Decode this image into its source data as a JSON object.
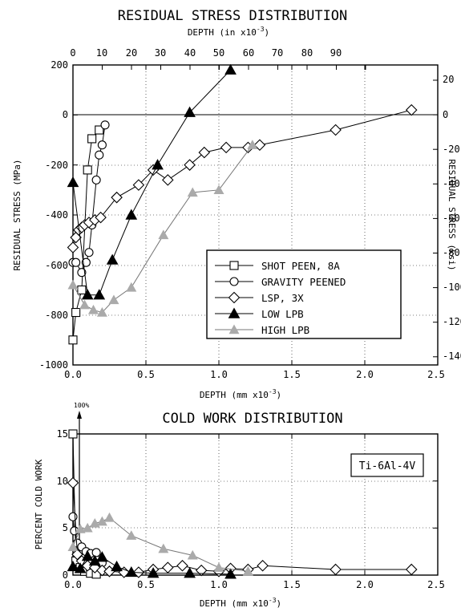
{
  "chart_data": [
    {
      "type": "line",
      "title": "RESIDUAL STRESS DISTRIBUTION",
      "xlabel": "DEPTH (mm x10",
      "xlabel_sup": "-3",
      "xlabel_end": ")",
      "x2label": "DEPTH (in x10",
      "x2label_sup": "-3",
      "x2label_end": ")",
      "ylabel": "RESIDUAL STRESS (MPa)",
      "y2label": "RESIDUAL STRESS (ksi)",
      "xlim": [
        0,
        2.5
      ],
      "ylim": [
        -1000,
        200
      ],
      "x2lim": [
        0,
        98.4
      ],
      "y2lim": [
        -145,
        29
      ],
      "xticks": [
        "0.0",
        "0.5",
        "1.0",
        "1.5",
        "2.0",
        "2.5"
      ],
      "yticks": [
        "200",
        "0",
        "-200",
        "-400",
        "-600",
        "-800",
        "-1000"
      ],
      "x2ticks": [
        "0",
        "10",
        "20",
        "30",
        "40",
        "50",
        "60",
        "70",
        "80",
        "90"
      ],
      "y2ticks": [
        "20",
        "0",
        "-20",
        "-40",
        "-60",
        "-80",
        "-100",
        "-120",
        "-140"
      ],
      "grid": true,
      "legend_position": "lower-right",
      "series": [
        {
          "name": "SHOT PEEN, 8A",
          "marker": "square",
          "color": "#000000",
          "x": [
            0.0,
            0.02,
            0.06,
            0.1,
            0.13,
            0.18
          ],
          "y": [
            -900,
            -790,
            -700,
            -220,
            -95,
            -60
          ]
        },
        {
          "name": "GRAVITY PEENED",
          "marker": "circle",
          "color": "#000000",
          "x": [
            0.0,
            0.02,
            0.06,
            0.09,
            0.11,
            0.13,
            0.16,
            0.18,
            0.2,
            0.22
          ],
          "y": [
            -590,
            -590,
            -630,
            -590,
            -550,
            -440,
            -260,
            -160,
            -120,
            -40
          ]
        },
        {
          "name": "LSP, 3X",
          "marker": "diamond",
          "color": "#000000",
          "x": [
            0.0,
            0.02,
            0.04,
            0.06,
            0.08,
            0.11,
            0.15,
            0.19,
            0.3,
            0.45,
            0.55,
            0.65,
            0.8,
            0.9,
            1.05,
            1.2,
            1.28,
            1.8,
            2.32
          ],
          "y": [
            -530,
            -490,
            -460,
            -450,
            -440,
            -430,
            -420,
            -410,
            -330,
            -280,
            -220,
            -260,
            -200,
            -150,
            -130,
            -130,
            -120,
            -60,
            20
          ]
        },
        {
          "name": "LOW LPB",
          "marker": "triangle",
          "color": "#000000",
          "x": [
            0.0,
            0.1,
            0.18,
            0.27,
            0.4,
            0.58,
            0.8,
            1.08
          ],
          "y": [
            -270,
            -720,
            -720,
            -580,
            -400,
            -200,
            10,
            180
          ]
        },
        {
          "name": "HIGH LPB",
          "marker": "triangle",
          "color": "#aaaaaa",
          "x": [
            0.0,
            0.08,
            0.14,
            0.2,
            0.28,
            0.4,
            0.62,
            0.82,
            1.0,
            1.23
          ],
          "y": [
            -680,
            -760,
            -780,
            -790,
            -740,
            -690,
            -480,
            -310,
            -300,
            -120
          ]
        }
      ]
    },
    {
      "type": "line",
      "title": "COLD WORK DISTRIBUTION",
      "xlabel": "DEPTH (mm x10",
      "xlabel_sup": "-3",
      "xlabel_end": ")",
      "ylabel": "PERCENT COLD WORK",
      "xlim": [
        0,
        2.5
      ],
      "ylim": [
        0,
        15
      ],
      "xticks": [
        "0.0",
        "0.5",
        "1.0",
        "1.5",
        "2.0",
        "2.5"
      ],
      "yticks": [
        "15",
        "10",
        "5",
        "0"
      ],
      "grid": true,
      "annotation": "100%",
      "alloy_label": "Ti-6Al-4V",
      "series": [
        {
          "name": "SHOT PEEN, 8A",
          "marker": "square",
          "color": "#000000",
          "x": [
            0.0,
            0.02,
            0.05,
            0.08,
            0.12,
            0.16
          ],
          "y": [
            15.5,
            1.5,
            0.8,
            0.4,
            0.2,
            0.1
          ]
        },
        {
          "name": "GRAVITY PEENED",
          "marker": "circle",
          "color": "#000000",
          "x": [
            0.0,
            0.01,
            0.03,
            0.06,
            0.09,
            0.12,
            0.16,
            0.2
          ],
          "y": [
            6.2,
            4.7,
            3.4,
            3.0,
            2.5,
            2.3,
            2.4,
            1.3
          ]
        },
        {
          "name": "LSP, 3X",
          "marker": "diamond",
          "color": "#000000",
          "x": [
            0.0,
            0.03,
            0.06,
            0.1,
            0.15,
            0.2,
            0.25,
            0.35,
            0.45,
            0.55,
            0.65,
            0.75,
            0.88,
            1.0,
            1.08,
            1.2,
            1.3,
            1.8,
            2.32
          ],
          "y": [
            9.8,
            2.2,
            1.5,
            1.0,
            0.8,
            0.5,
            0.4,
            0.3,
            0.3,
            0.6,
            0.8,
            1.0,
            0.5,
            0.4,
            0.7,
            0.6,
            1.0,
            0.6,
            0.6
          ]
        },
        {
          "name": "LOW LPB",
          "marker": "triangle",
          "color": "#000000",
          "x": [
            0.0,
            0.05,
            0.1,
            0.15,
            0.2,
            0.3,
            0.4,
            0.55,
            0.8,
            1.08
          ],
          "y": [
            0.9,
            0.7,
            2.0,
            1.5,
            1.9,
            0.9,
            0.3,
            0.2,
            0.2,
            0.1
          ]
        },
        {
          "name": "HIGH LPB",
          "marker": "triangle",
          "color": "#aaaaaa",
          "x": [
            0.0,
            0.05,
            0.1,
            0.15,
            0.2,
            0.25,
            0.4,
            0.62,
            0.82,
            1.0,
            1.2
          ],
          "y": [
            3.0,
            4.9,
            5.0,
            5.5,
            5.7,
            6.1,
            4.2,
            2.8,
            2.1,
            0.8,
            0.4
          ]
        }
      ]
    }
  ]
}
